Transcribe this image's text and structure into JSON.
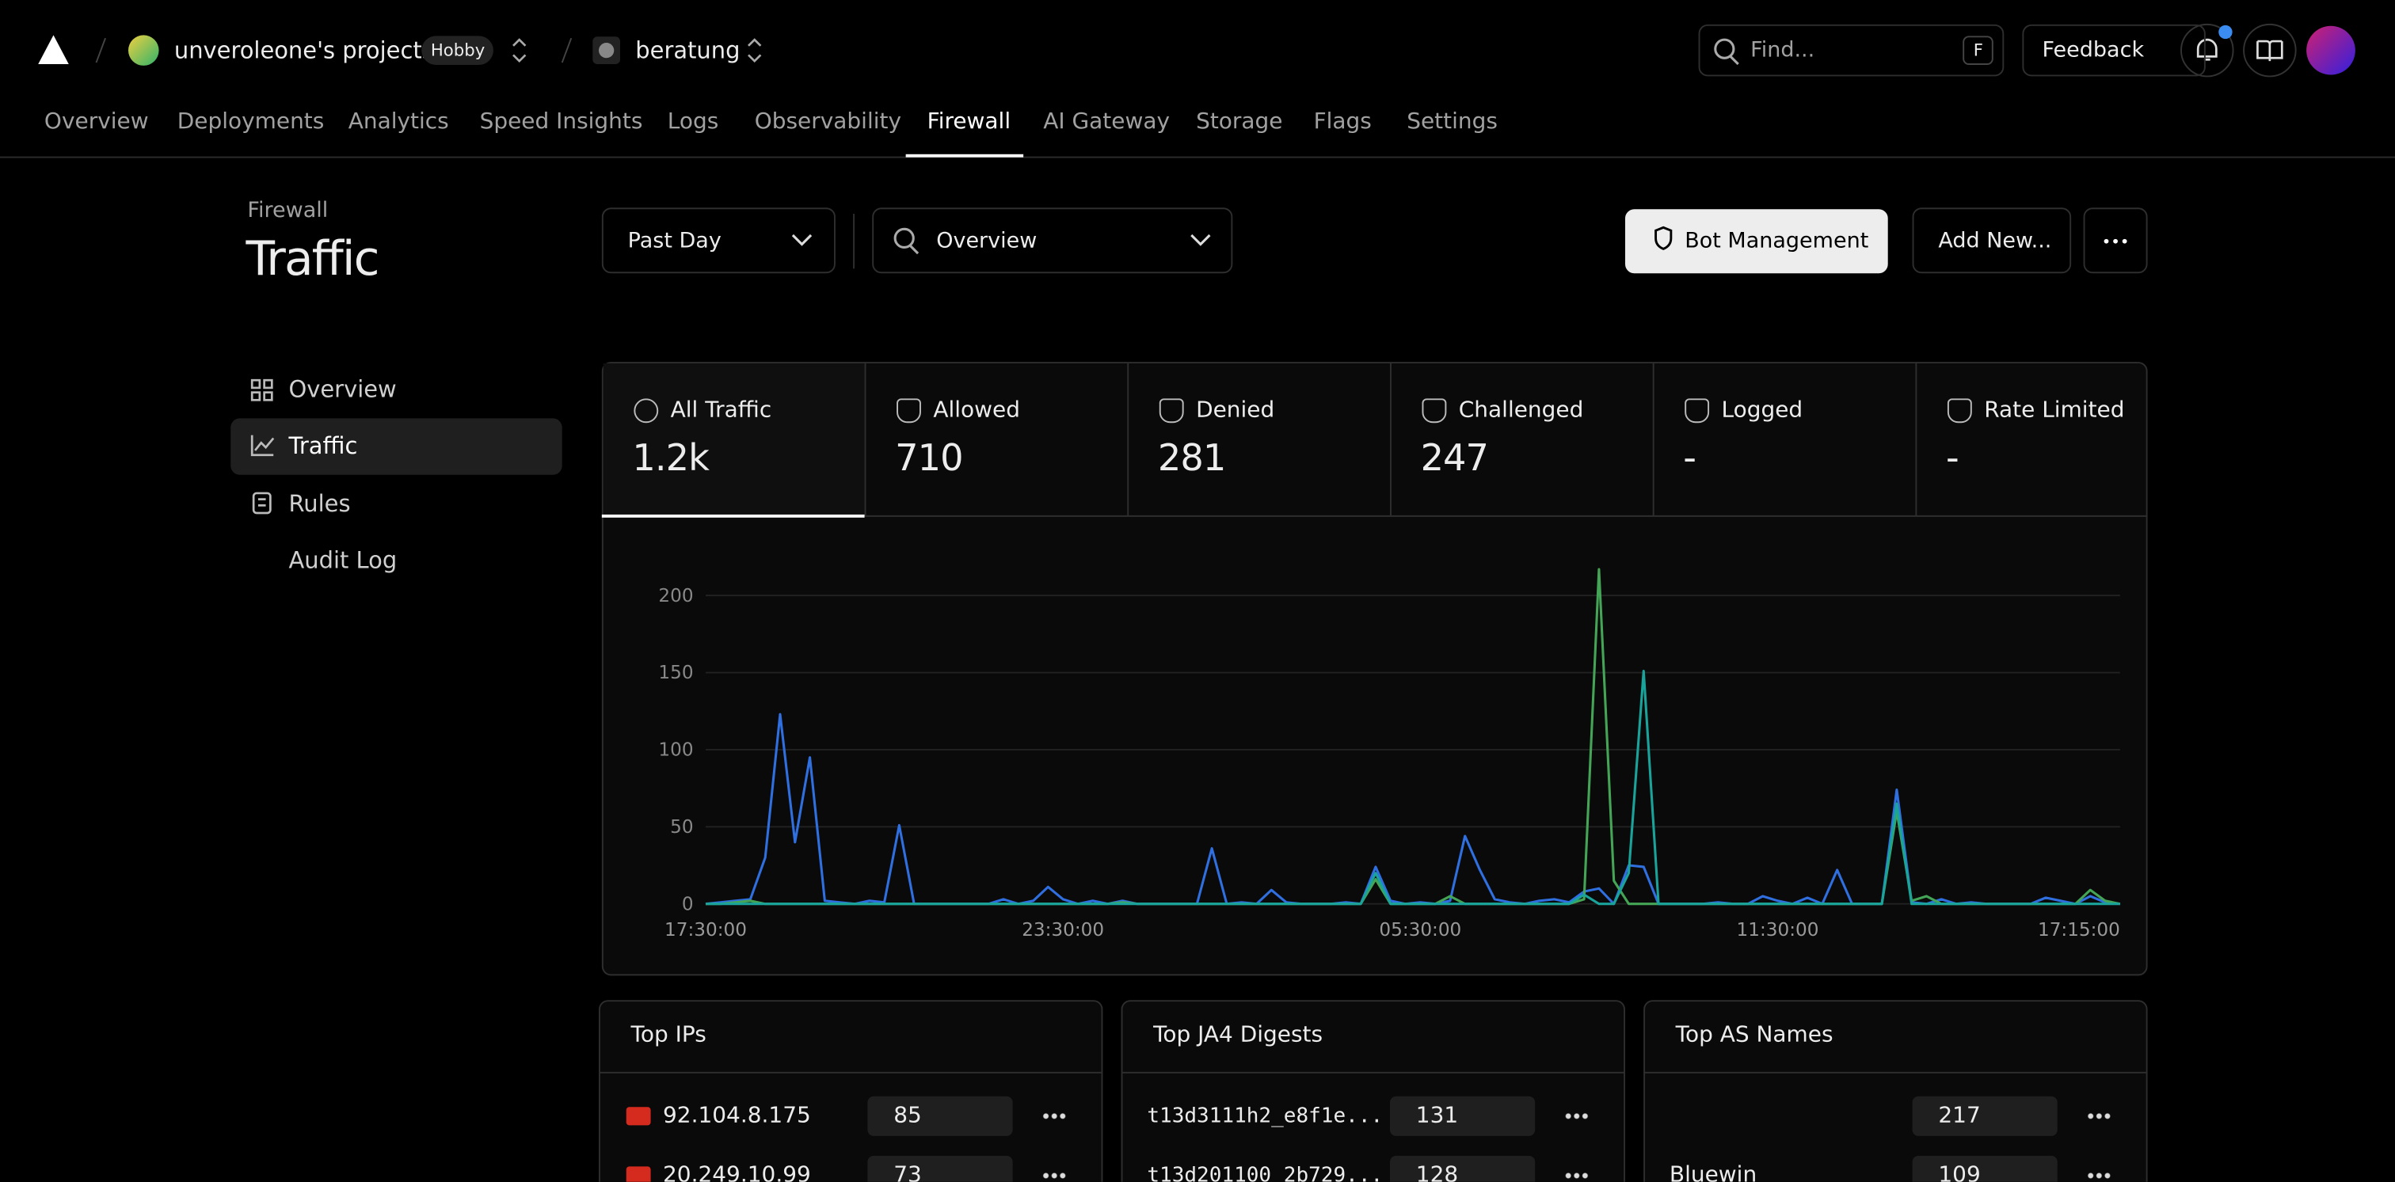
{
  "header": {
    "project": "unveroleone's projects",
    "plan": "Hobby",
    "repo": "beratung",
    "search_placeholder": "Find...",
    "search_key": "F",
    "feedback": "Feedback"
  },
  "tabs": [
    "Overview",
    "Deployments",
    "Analytics",
    "Speed Insights",
    "Logs",
    "Observability",
    "Firewall",
    "AI Gateway",
    "Storage",
    "Flags",
    "Settings"
  ],
  "page": {
    "breadcrumb": "Firewall",
    "title": "Traffic",
    "range": "Past Day",
    "view": "Overview",
    "bot_button": "Bot Management",
    "add_button": "Add New..."
  },
  "sidebar": [
    "Overview",
    "Traffic",
    "Rules",
    "Audit Log"
  ],
  "stats": [
    {
      "label": "All Traffic",
      "value": "1.2k"
    },
    {
      "label": "Allowed",
      "value": "710"
    },
    {
      "label": "Denied",
      "value": "281"
    },
    {
      "label": "Challenged",
      "value": "247"
    },
    {
      "label": "Logged",
      "value": "-"
    },
    {
      "label": "Rate Limited",
      "value": "-"
    }
  ],
  "chart_data": {
    "type": "line",
    "categories": [
      "17:30:00",
      null,
      null,
      null,
      null,
      null,
      null,
      null,
      null,
      null,
      null,
      null,
      null,
      null,
      null,
      null,
      null,
      null,
      null,
      null,
      null,
      null,
      null,
      null,
      "23:30:00",
      null,
      null,
      null,
      null,
      null,
      null,
      null,
      null,
      null,
      null,
      null,
      null,
      null,
      null,
      null,
      null,
      null,
      null,
      null,
      null,
      null,
      null,
      null,
      "05:30:00",
      null,
      null,
      null,
      null,
      null,
      null,
      null,
      null,
      null,
      null,
      null,
      null,
      null,
      null,
      null,
      null,
      null,
      null,
      null,
      null,
      null,
      null,
      null,
      "11:30:00",
      null,
      null,
      null,
      null,
      null,
      null,
      null,
      null,
      null,
      null,
      null,
      null,
      null,
      null,
      null,
      null,
      null,
      null,
      null,
      null,
      null,
      null,
      "17:15:00"
    ],
    "series": [
      {
        "color": "#2f6fe0",
        "values": [
          0,
          1,
          2,
          3,
          30,
          123,
          40,
          95,
          2,
          1,
          0,
          2,
          1,
          51,
          0,
          0,
          0,
          0,
          0,
          0,
          3,
          0,
          2,
          11,
          3,
          0,
          2,
          0,
          2,
          0,
          0,
          0,
          0,
          0,
          36,
          0,
          1,
          0,
          9,
          1,
          0,
          0,
          0,
          1,
          0,
          24,
          2,
          0,
          1,
          0,
          2,
          44,
          22,
          3,
          1,
          0,
          2,
          3,
          1,
          8,
          10,
          0,
          25,
          24,
          0,
          0,
          0,
          0,
          1,
          0,
          0,
          5,
          2,
          0,
          4,
          0,
          22,
          0,
          0,
          0,
          74,
          1,
          0,
          3,
          0,
          1,
          0,
          0,
          0,
          0,
          4,
          2,
          0,
          5,
          1,
          0
        ]
      },
      {
        "color": "#45a557",
        "values": [
          0,
          0,
          1,
          2,
          0,
          0,
          0,
          0,
          0,
          0,
          0,
          0,
          0,
          0,
          0,
          0,
          0,
          0,
          0,
          0,
          0,
          0,
          0,
          0,
          0,
          0,
          0,
          0,
          1,
          0,
          0,
          0,
          0,
          0,
          0,
          0,
          0,
          0,
          0,
          0,
          0,
          0,
          0,
          0,
          0,
          16,
          0,
          0,
          0,
          0,
          5,
          0,
          0,
          0,
          0,
          0,
          0,
          0,
          0,
          3,
          217,
          15,
          0,
          0,
          0,
          0,
          0,
          0,
          0,
          0,
          0,
          0,
          0,
          0,
          0,
          0,
          0,
          0,
          0,
          0,
          60,
          2,
          5,
          0,
          0,
          0,
          0,
          0,
          0,
          0,
          0,
          0,
          0,
          9,
          2,
          0
        ]
      },
      {
        "color": "#1aa39a",
        "values": [
          0,
          0,
          0,
          0,
          0,
          0,
          0,
          0,
          0,
          0,
          0,
          0,
          0,
          0,
          0,
          0,
          0,
          0,
          0,
          0,
          0,
          0,
          0,
          0,
          0,
          0,
          0,
          0,
          0,
          0,
          0,
          0,
          0,
          0,
          0,
          0,
          0,
          0,
          0,
          0,
          0,
          0,
          0,
          0,
          0,
          20,
          0,
          0,
          0,
          0,
          0,
          0,
          0,
          0,
          0,
          0,
          0,
          0,
          0,
          6,
          0,
          0,
          20,
          151,
          0,
          0,
          0,
          0,
          0,
          0,
          0,
          0,
          0,
          0,
          0,
          0,
          0,
          0,
          0,
          0,
          65,
          0,
          0,
          0,
          0,
          0,
          0,
          0,
          0,
          0,
          0,
          0,
          0,
          0,
          0,
          0
        ]
      }
    ],
    "ylim": [
      0,
      220
    ],
    "yticks": [
      0,
      50,
      100,
      150,
      200
    ],
    "grid": true
  },
  "panels": [
    {
      "title": "Top IPs",
      "rows": [
        {
          "label": "92.104.8.175",
          "count": 85
        },
        {
          "label": "20.249.10.99",
          "count": 73
        }
      ]
    },
    {
      "title": "Top JA4 Digests",
      "rows": [
        {
          "label": "t13d3111h2_e8f1e...",
          "count": 131
        },
        {
          "label": "t13d201100_2b729...",
          "count": 128
        }
      ]
    },
    {
      "title": "Top AS Names",
      "rows": [
        {
          "count": 217
        },
        {
          "label": "Bluewin",
          "count": 109
        }
      ]
    }
  ]
}
